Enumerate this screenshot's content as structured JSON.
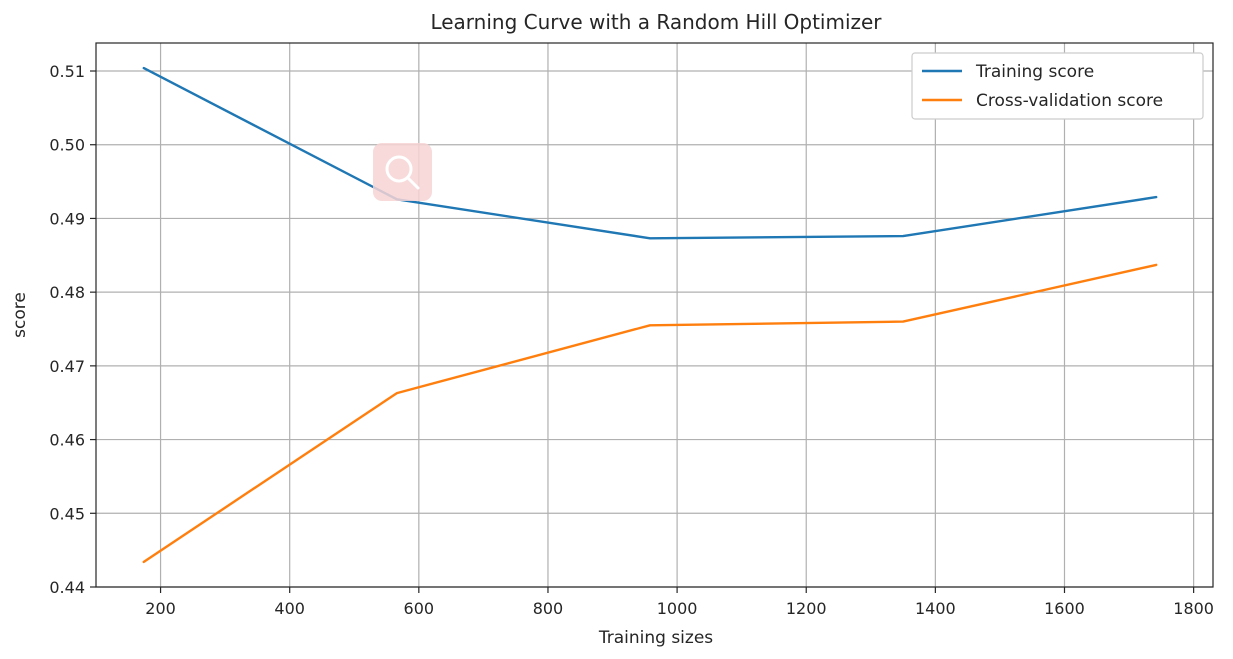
{
  "chart_data": {
    "type": "line",
    "title": "Learning Curve with a Random Hill Optimizer",
    "xlabel": "Training sizes",
    "ylabel": "score",
    "xlim": [
      100,
      1830
    ],
    "ylim": [
      0.44,
      0.5138
    ],
    "xticks": [
      200,
      400,
      600,
      800,
      1000,
      1200,
      1400,
      1600,
      1800
    ],
    "xtick_labels": [
      "200",
      "400",
      "600",
      "800",
      "1000",
      "1200",
      "1400",
      "1600",
      "1800"
    ],
    "yticks": [
      0.44,
      0.45,
      0.46,
      0.47,
      0.48,
      0.49,
      0.5,
      0.51
    ],
    "ytick_labels": [
      "0.44",
      "0.45",
      "0.46",
      "0.47",
      "0.48",
      "0.49",
      "0.50",
      "0.51"
    ],
    "grid": true,
    "legend_position": "top-right",
    "x": [
      174,
      566,
      958,
      1350,
      1742
    ],
    "series": [
      {
        "name": "Training score",
        "color": "#1f77b4",
        "values": [
          0.5104,
          0.4926,
          0.4873,
          0.4876,
          0.4929
        ]
      },
      {
        "name": "Cross-validation score",
        "color": "#ff7f0e",
        "values": [
          0.4434,
          0.4663,
          0.4755,
          0.476,
          0.4837
        ]
      }
    ]
  },
  "overlay": {
    "icon": "magnifier-icon",
    "color": "#f8d7d7"
  }
}
